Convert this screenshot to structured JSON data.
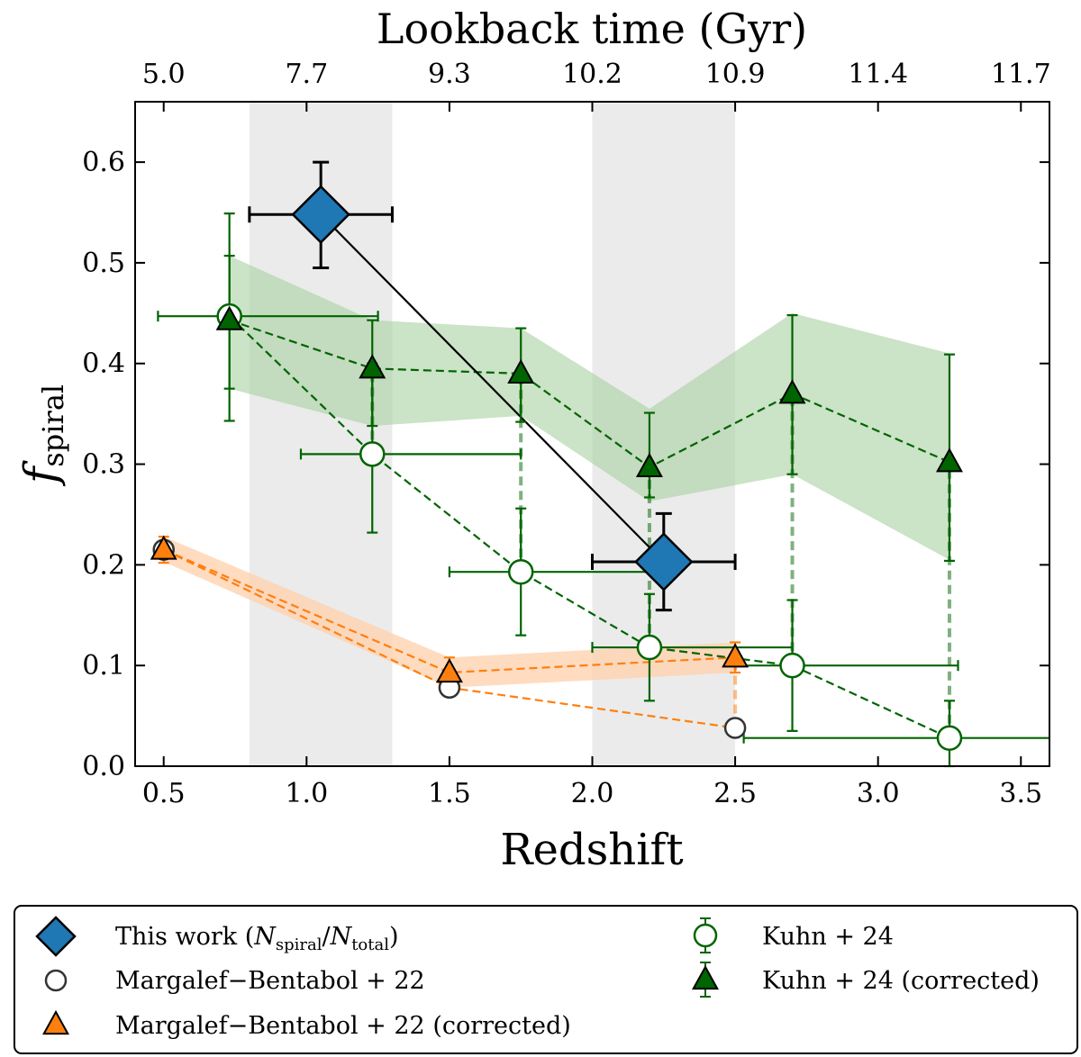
{
  "chart_data": {
    "type": "scatter",
    "xlabel": "Redshift",
    "ylabel_main": "f",
    "ylabel_sub": "spiral",
    "top_axis_title": "Lookback time (Gyr)",
    "xlim": [
      0.4,
      3.6
    ],
    "ylim": [
      0.0,
      0.66
    ],
    "x_ticks": [
      "0.5",
      "1.0",
      "1.5",
      "2.0",
      "2.5",
      "3.0",
      "3.5"
    ],
    "y_ticks": [
      "0.0",
      "0.1",
      "0.2",
      "0.3",
      "0.4",
      "0.5",
      "0.6"
    ],
    "top_ticks": [
      "5.0",
      "7.7",
      "9.3",
      "10.2",
      "10.9",
      "11.4",
      "11.7"
    ],
    "shaded_bands": [
      [
        0.8,
        1.3
      ],
      [
        2.0,
        2.5
      ]
    ],
    "colors": {
      "this_work": "#1f77b4",
      "kuhn": "#006400",
      "kuhn_band": "#a8d0a0",
      "margalef": "#ff7f0e",
      "margalef_band": "#ffd2b0",
      "band": "#ebebeb"
    },
    "series": [
      {
        "name": "This work",
        "legend": "This work (N_spiral/N_total)",
        "marker": "diamond",
        "points": [
          {
            "x": 1.05,
            "y": 0.548,
            "xerr": [
              0.25,
              0.25
            ],
            "yerr": [
              0.053,
              0.052
            ]
          },
          {
            "x": 2.25,
            "y": 0.203,
            "xerr": [
              0.25,
              0.25
            ],
            "yerr": [
              0.048,
              0.048
            ]
          }
        ]
      },
      {
        "name": "Margalef-Bentabol + 22",
        "legend": "Margalef−Bentabol + 22",
        "marker": "open-circle",
        "points": [
          {
            "x": 0.5,
            "y": 0.215
          },
          {
            "x": 1.5,
            "y": 0.078
          },
          {
            "x": 2.5,
            "y": 0.038
          }
        ]
      },
      {
        "name": "Margalef-Bentabol + 22 (corrected)",
        "legend": "Margalef−Bentabol + 22 (corrected)",
        "marker": "triangle",
        "points": [
          {
            "x": 0.5,
            "y": 0.215,
            "yerr": [
              0.013,
              0.013
            ]
          },
          {
            "x": 1.5,
            "y": 0.093,
            "yerr": [
              0.015,
              0.015
            ]
          },
          {
            "x": 2.5,
            "y": 0.108,
            "yerr": [
              0.015,
              0.015
            ]
          }
        ],
        "band": {
          "x": [
            0.5,
            1.5,
            2.5
          ],
          "lo": [
            0.203,
            0.078,
            0.093
          ],
          "hi": [
            0.228,
            0.108,
            0.123
          ]
        }
      },
      {
        "name": "Kuhn + 24",
        "legend": "Kuhn + 24",
        "marker": "open-circle",
        "points": [
          {
            "x": 0.73,
            "y": 0.447,
            "xerr": [
              0.25,
              0.52
            ],
            "yerr": [
              0.072,
              0.06
            ]
          },
          {
            "x": 1.23,
            "y": 0.31,
            "xerr": [
              0.25,
              0.52
            ],
            "yerr": [
              0.078,
              0.09
            ]
          },
          {
            "x": 1.75,
            "y": 0.193,
            "xerr": [
              0.25,
              0.51
            ],
            "yerr": [
              0.063,
              0.063
            ]
          },
          {
            "x": 2.2,
            "y": 0.118,
            "xerr": [
              0.2,
              0.5
            ],
            "yerr": [
              0.053,
              0.053
            ]
          },
          {
            "x": 2.7,
            "y": 0.1,
            "xerr": [
              0.2,
              0.58
            ],
            "yerr": [
              0.065,
              0.065
            ]
          },
          {
            "x": 3.25,
            "y": 0.028,
            "xerr": [
              0.72,
              0.35
            ],
            "yerr": [
              0.028,
              0.037
            ]
          }
        ]
      },
      {
        "name": "Kuhn + 24 (corrected)",
        "legend": "Kuhn + 24 (corrected)",
        "marker": "triangle",
        "points": [
          {
            "x": 0.73,
            "y": 0.443,
            "yerr": [
              0.1,
              0.106
            ]
          },
          {
            "x": 1.23,
            "y": 0.395,
            "yerr": [
              0.057,
              0.048
            ]
          },
          {
            "x": 1.75,
            "y": 0.39,
            "yerr": [
              0.048,
              0.045
            ]
          },
          {
            "x": 2.2,
            "y": 0.297,
            "yerr": [
              0.03,
              0.054
            ]
          },
          {
            "x": 2.7,
            "y": 0.37,
            "yerr": [
              0.08,
              0.078
            ]
          },
          {
            "x": 3.25,
            "y": 0.302,
            "yerr": [
              0.098,
              0.107
            ]
          }
        ],
        "band": {
          "x": [
            0.73,
            1.23,
            1.75,
            2.2,
            2.7,
            3.25
          ],
          "lo": [
            0.375,
            0.338,
            0.348,
            0.263,
            0.29,
            0.205
          ],
          "hi": [
            0.507,
            0.443,
            0.435,
            0.355,
            0.45,
            0.41
          ]
        }
      }
    ],
    "connectors": [
      {
        "from": [
          0.73,
          0.447
        ],
        "to": [
          0.73,
          0.443
        ]
      },
      {
        "from": [
          1.23,
          0.31
        ],
        "to": [
          1.23,
          0.395
        ]
      },
      {
        "from": [
          1.75,
          0.193
        ],
        "to": [
          1.75,
          0.39
        ]
      },
      {
        "from": [
          2.2,
          0.118
        ],
        "to": [
          2.2,
          0.297
        ]
      },
      {
        "from": [
          2.7,
          0.1
        ],
        "to": [
          2.7,
          0.37
        ]
      },
      {
        "from": [
          3.25,
          0.028
        ],
        "to": [
          3.25,
          0.302
        ]
      },
      {
        "from": [
          2.5,
          0.038
        ],
        "to": [
          2.5,
          0.108
        ],
        "color": "margalef"
      }
    ],
    "legend": {
      "placement": "bottom",
      "entries": [
        {
          "symbol": "diamond",
          "text": "This work (",
          "math_main_1": "N",
          "math_sub_1": "spiral",
          "math_sep": "/",
          "math_main_2": "N",
          "math_sub_2": "total",
          "text_end": ")"
        },
        {
          "symbol": "open-circle-dark",
          "text": "Margalef−Bentabol + 22"
        },
        {
          "symbol": "triangle-orange",
          "text": "Margalef−Bentabol + 22 (corrected)"
        },
        {
          "symbol": "open-circle-green",
          "text": "Kuhn + 24"
        },
        {
          "symbol": "triangle-green",
          "text": "Kuhn + 24 (corrected)"
        }
      ]
    }
  }
}
